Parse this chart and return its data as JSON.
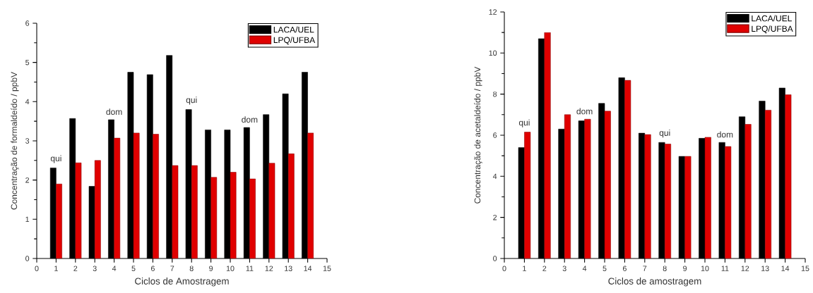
{
  "chart_data": [
    {
      "type": "bar",
      "xlabel": "Ciclos de Amostragem",
      "ylabel": "Concentração de formaldeído / ppbV",
      "x": [
        1,
        2,
        3,
        4,
        5,
        6,
        7,
        8,
        9,
        10,
        11,
        12,
        13,
        14
      ],
      "series": [
        {
          "name": "LACA/UEL",
          "color": "#000000",
          "values": [
            2.31,
            3.57,
            1.84,
            3.54,
            4.75,
            4.69,
            5.18,
            3.8,
            3.28,
            3.28,
            3.34,
            3.67,
            4.2,
            4.75
          ]
        },
        {
          "name": "LPQ/UFBA",
          "color": "#e00000",
          "values": [
            1.9,
            2.44,
            2.5,
            3.07,
            3.2,
            3.17,
            2.37,
            2.37,
            2.07,
            2.2,
            2.03,
            2.43,
            2.67,
            3.2
          ]
        }
      ],
      "xlim": [
        0,
        15
      ],
      "xticks": [
        0,
        1,
        2,
        3,
        4,
        5,
        6,
        7,
        8,
        9,
        10,
        11,
        12,
        13,
        14,
        15
      ],
      "ylim": [
        0,
        6
      ],
      "yticks": [
        0,
        1,
        2,
        3,
        4,
        5,
        6
      ],
      "legend": "top right",
      "annotations": [
        {
          "text": "qui",
          "x": 1,
          "y": 2.31
        },
        {
          "text": "dom",
          "x": 4,
          "y": 3.54
        },
        {
          "text": "qui",
          "x": 8,
          "y": 3.8
        },
        {
          "text": "dom",
          "x": 11,
          "y": 3.34
        }
      ]
    },
    {
      "type": "bar",
      "xlabel": "Ciclos de amostragem",
      "ylabel": "Concentração de acetaldeído / ppbV",
      "x": [
        1,
        2,
        3,
        4,
        5,
        6,
        7,
        8,
        9,
        10,
        11,
        12,
        13,
        14
      ],
      "series": [
        {
          "name": "LACA/UEL",
          "color": "#000000",
          "values": [
            5.4,
            10.7,
            6.3,
            6.7,
            7.55,
            8.8,
            6.1,
            5.65,
            4.97,
            5.85,
            5.65,
            6.9,
            7.66,
            8.3
          ]
        },
        {
          "name": "LPQ/UFBA",
          "color": "#e00000",
          "values": [
            6.15,
            11.0,
            7.0,
            6.78,
            7.17,
            8.67,
            6.03,
            5.57,
            4.97,
            5.9,
            5.45,
            6.53,
            7.22,
            7.97
          ]
        }
      ],
      "xlim": [
        0,
        15
      ],
      "xticks": [
        0,
        1,
        2,
        3,
        4,
        5,
        6,
        7,
        8,
        9,
        10,
        11,
        12,
        13,
        14,
        15
      ],
      "ylim": [
        0,
        12
      ],
      "yticks": [
        0,
        2,
        4,
        6,
        8,
        10,
        12
      ],
      "legend": "top right",
      "annotations": [
        {
          "text": "qui",
          "x": 1,
          "y": 6.15
        },
        {
          "text": "dom",
          "x": 4,
          "y": 6.78
        },
        {
          "text": "qui",
          "x": 8,
          "y": 5.65
        },
        {
          "text": "dom",
          "x": 11,
          "y": 5.65
        }
      ]
    }
  ]
}
